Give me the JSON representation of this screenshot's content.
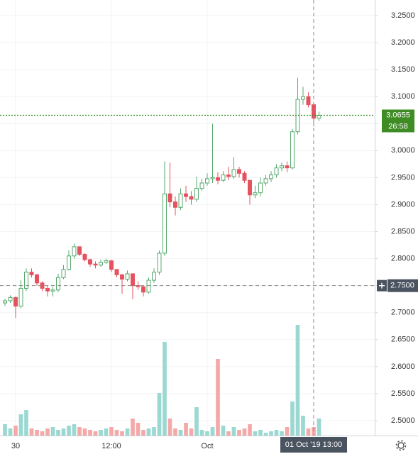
{
  "chart_data": {
    "type": "candlestick",
    "up_color": "#53a86b",
    "down_color": "#e5525f",
    "volume_up_color": "#9bd8d2",
    "volume_down_color": "#f4a9a9",
    "ylim": [
      2.4724,
      3.2789
    ],
    "xlim": [
      -0.933,
      69.467
    ],
    "volume_lim": [
      0,
      100
    ],
    "grid": true,
    "yticks": [
      {
        "value": 2.5,
        "label": "2.5000"
      },
      {
        "value": 2.55,
        "label": "2.5500"
      },
      {
        "value": 2.6,
        "label": "2.6000"
      },
      {
        "value": 2.65,
        "label": "2.6500"
      },
      {
        "value": 2.7,
        "label": "2.7000"
      },
      {
        "value": 2.75,
        "label": "2.7500"
      },
      {
        "value": 2.8,
        "label": "2.8000"
      },
      {
        "value": 2.85,
        "label": "2.8500"
      },
      {
        "value": 2.9,
        "label": "2.9000"
      },
      {
        "value": 2.95,
        "label": "2.9500"
      },
      {
        "value": 3.0,
        "label": "3.0000"
      },
      {
        "value": 3.05,
        "label": "3.0500"
      },
      {
        "value": 3.1,
        "label": "3.1000"
      },
      {
        "value": 3.15,
        "label": "3.1500"
      },
      {
        "value": 3.2,
        "label": "3.2000"
      },
      {
        "value": 3.25,
        "label": "3.2500"
      }
    ],
    "xticks": [
      {
        "value": 2,
        "label": "30"
      },
      {
        "value": 20,
        "label": "12:00"
      },
      {
        "value": 38,
        "label": "Oct"
      }
    ],
    "open": [
      2.718,
      2.722,
      2.728,
      2.712,
      2.745,
      2.775,
      2.77,
      2.755,
      2.745,
      2.74,
      2.742,
      2.765,
      2.78,
      2.805,
      2.822,
      2.808,
      2.798,
      2.79,
      2.788,
      2.793,
      2.796,
      2.78,
      2.77,
      2.762,
      2.772,
      2.75,
      2.748,
      2.738,
      2.76,
      2.775,
      2.81,
      2.92,
      2.905,
      2.895,
      2.92,
      2.915,
      2.91,
      2.93,
      2.94,
      2.948,
      2.95,
      2.945,
      2.955,
      2.952,
      2.965,
      2.958,
      2.945,
      2.918,
      2.922,
      2.94,
      2.948,
      2.955,
      2.968,
      2.972,
      2.968,
      3.035,
      3.095,
      3.1,
      3.085,
      3.06
    ],
    "close": [
      2.722,
      2.728,
      2.712,
      2.745,
      2.775,
      2.77,
      2.755,
      2.745,
      2.74,
      2.742,
      2.765,
      2.78,
      2.805,
      2.822,
      2.808,
      2.798,
      2.79,
      2.788,
      2.793,
      2.796,
      2.78,
      2.77,
      2.762,
      2.772,
      2.75,
      2.748,
      2.738,
      2.76,
      2.775,
      2.81,
      2.92,
      2.905,
      2.895,
      2.92,
      2.915,
      2.91,
      2.93,
      2.94,
      2.948,
      2.95,
      2.945,
      2.955,
      2.952,
      2.965,
      2.958,
      2.945,
      2.918,
      2.922,
      2.94,
      2.948,
      2.955,
      2.968,
      2.972,
      2.968,
      3.035,
      3.095,
      3.1,
      3.085,
      3.06,
      3.0655
    ],
    "high": [
      2.726,
      2.732,
      2.73,
      2.76,
      2.782,
      2.782,
      2.772,
      2.758,
      2.75,
      2.748,
      2.772,
      2.788,
      2.815,
      2.828,
      2.822,
      2.81,
      2.8,
      2.795,
      2.798,
      2.8,
      2.798,
      2.78,
      2.772,
      2.778,
      2.772,
      2.758,
      2.75,
      2.765,
      2.782,
      2.815,
      2.98,
      2.978,
      2.915,
      2.93,
      2.935,
      2.925,
      2.952,
      2.948,
      2.958,
      3.05,
      2.96,
      2.962,
      2.97,
      2.988,
      2.97,
      2.962,
      2.945,
      2.935,
      2.95,
      2.955,
      2.962,
      2.975,
      2.978,
      2.98,
      3.04,
      3.135,
      3.118,
      3.108,
      3.09,
      3.072
    ],
    "low": [
      2.712,
      2.718,
      2.69,
      2.708,
      2.74,
      2.765,
      2.75,
      2.74,
      2.73,
      2.73,
      2.738,
      2.762,
      2.778,
      2.8,
      2.805,
      2.795,
      2.785,
      2.782,
      2.785,
      2.79,
      2.775,
      2.765,
      2.735,
      2.758,
      2.725,
      2.742,
      2.73,
      2.735,
      2.755,
      2.77,
      2.805,
      2.895,
      2.88,
      2.89,
      2.905,
      2.9,
      2.905,
      2.925,
      2.935,
      2.94,
      2.938,
      2.942,
      2.945,
      2.948,
      2.95,
      2.94,
      2.9,
      2.912,
      2.915,
      2.935,
      2.942,
      2.95,
      2.962,
      2.96,
      2.965,
      3.03,
      3.085,
      3.08,
      3.045,
      3.055
    ],
    "volume": [
      8,
      5,
      7,
      15,
      18,
      5,
      4,
      3,
      5,
      6,
      4,
      5,
      7,
      8,
      6,
      5,
      4,
      3,
      4,
      5,
      6,
      4,
      3,
      5,
      12,
      9,
      4,
      5,
      6,
      30,
      66,
      12,
      5,
      4,
      9,
      5,
      20,
      4,
      3,
      6,
      54,
      7,
      3,
      6,
      4,
      5,
      8,
      3,
      4,
      2,
      3,
      4,
      3,
      6,
      24,
      78,
      14,
      5,
      6,
      12
    ],
    "last_price": {
      "value": 3.0655,
      "label": "3.0655",
      "countdown": "26:58"
    },
    "crosshair": {
      "x": 58,
      "x_label": "01 Oct '19 13:00",
      "price": 2.75,
      "price_label": "2.7500"
    }
  }
}
